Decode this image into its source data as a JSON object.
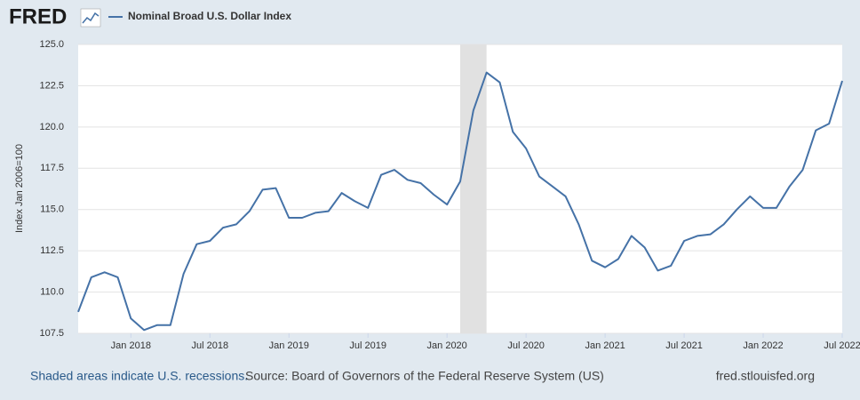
{
  "chart_data": {
    "type": "line",
    "logo": "FRED",
    "y_label": "Index Jan 2006=100",
    "x": [
      "2017-09",
      "2017-10",
      "2017-11",
      "2017-12",
      "2018-01",
      "2018-02",
      "2018-03",
      "2018-04",
      "2018-05",
      "2018-06",
      "2018-07",
      "2018-08",
      "2018-09",
      "2018-10",
      "2018-11",
      "2018-12",
      "2019-01",
      "2019-02",
      "2019-03",
      "2019-04",
      "2019-05",
      "2019-06",
      "2019-07",
      "2019-08",
      "2019-09",
      "2019-10",
      "2019-11",
      "2019-12",
      "2020-01",
      "2020-02",
      "2020-03",
      "2020-04",
      "2020-05",
      "2020-06",
      "2020-07",
      "2020-08",
      "2020-09",
      "2020-10",
      "2020-11",
      "2020-12",
      "2021-01",
      "2021-02",
      "2021-03",
      "2021-04",
      "2021-05",
      "2021-06",
      "2021-07",
      "2021-08",
      "2021-09",
      "2021-10",
      "2021-11",
      "2021-12",
      "2022-01",
      "2022-02",
      "2022-03",
      "2022-04",
      "2022-05",
      "2022-06",
      "2022-07"
    ],
    "series": [
      {
        "name": "Nominal Broad U.S. Dollar Index",
        "color": "#4572a7",
        "values": [
          108.8,
          110.9,
          111.2,
          110.9,
          108.4,
          107.7,
          108.0,
          108.0,
          111.1,
          112.9,
          113.1,
          113.9,
          114.1,
          114.9,
          116.2,
          116.3,
          114.5,
          114.5,
          114.8,
          114.9,
          116.0,
          115.5,
          115.1,
          117.1,
          117.4,
          116.8,
          116.6,
          115.9,
          115.3,
          116.7,
          121.0,
          123.3,
          122.7,
          119.7,
          118.7,
          117.0,
          116.4,
          115.8,
          114.1,
          111.9,
          111.5,
          112.0,
          113.4,
          112.7,
          111.3,
          111.6,
          113.1,
          113.4,
          113.5,
          114.1,
          115.0,
          115.8,
          115.1,
          115.1,
          116.4,
          117.4,
          119.8,
          120.2,
          122.8
        ]
      }
    ],
    "recessions": [
      {
        "start": "2020-02",
        "end": "2020-04"
      }
    ],
    "xlim": [
      "2017-09",
      "2022-07"
    ],
    "xticks": [
      {
        "value": "2018-01",
        "label": "Jan 2018"
      },
      {
        "value": "2018-07",
        "label": "Jul 2018"
      },
      {
        "value": "2019-01",
        "label": "Jan 2019"
      },
      {
        "value": "2019-07",
        "label": "Jul 2019"
      },
      {
        "value": "2020-01",
        "label": "Jan 2020"
      },
      {
        "value": "2020-07",
        "label": "Jul 2020"
      },
      {
        "value": "2021-01",
        "label": "Jan 2021"
      },
      {
        "value": "2021-07",
        "label": "Jul 2021"
      },
      {
        "value": "2022-01",
        "label": "Jan 2022"
      },
      {
        "value": "2022-07",
        "label": "Jul 2022"
      }
    ],
    "ylim": [
      107.5,
      125
    ],
    "yticks": [
      107.5,
      {
        "value": 110,
        "label": "110.0"
      },
      112.5,
      {
        "value": 115,
        "label": "115.0"
      },
      117.5,
      {
        "value": 120,
        "label": "120.0"
      },
      122.5,
      {
        "value": 125,
        "label": "125.0"
      }
    ],
    "grid": true,
    "footer": {
      "recession_note": "Shaded areas indicate U.S. recessions.",
      "source": "Source: Board of Governors of the Federal Reserve System (US)",
      "site": "fred.stlouisfed.org"
    }
  }
}
